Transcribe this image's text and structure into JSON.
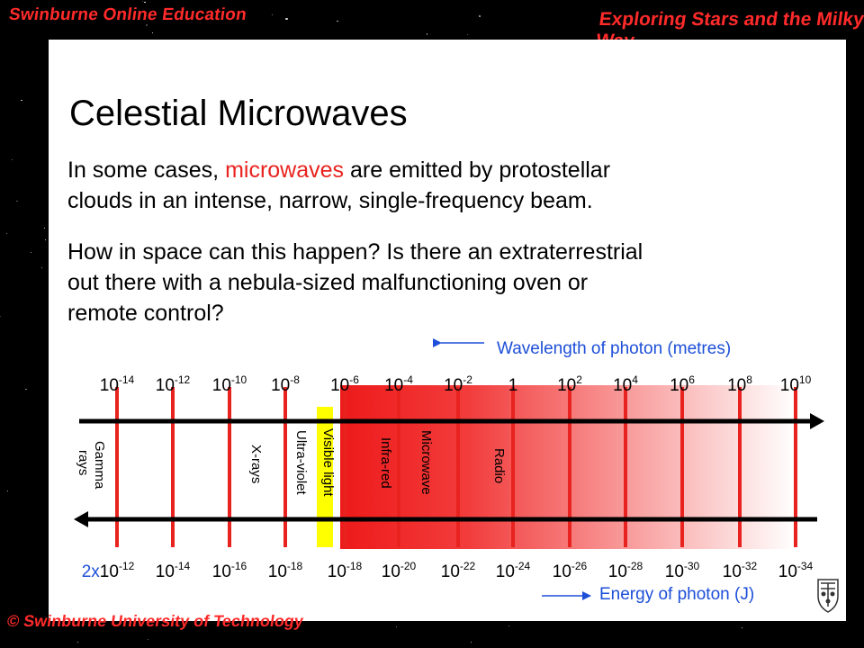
{
  "header": {
    "left": "Swinburne Online Education",
    "right": "Exploring Stars and the Milky Way"
  },
  "footer": {
    "text": "© Swinburne University of Technology"
  },
  "title": "Celestial Microwaves",
  "paragraph1": {
    "before": "In some cases, ",
    "highlight": "microwaves",
    "after_line1": " are emitted by protostellar",
    "line2": "clouds in an intense, narrow, single-frequency beam."
  },
  "paragraph2": {
    "line1": "How in space can this happen? Is there an extraterrestrial",
    "line2": "out there with a nebula-sized malfunctioning oven or",
    "line3": "remote control?"
  },
  "spectrum": {
    "wavelength_caption": "Wavelength of photon (metres)",
    "energy_caption": "Energy of photon (J)",
    "wavelength_ticks": [
      {
        "base": "10",
        "exp": "-14"
      },
      {
        "base": "10",
        "exp": "-12"
      },
      {
        "base": "10",
        "exp": "-10"
      },
      {
        "base": "10",
        "exp": "-8"
      },
      {
        "base": "10",
        "exp": "-6"
      },
      {
        "base": "10",
        "exp": "-4"
      },
      {
        "base": "10",
        "exp": "-2"
      },
      {
        "base": "1",
        "exp": ""
      },
      {
        "base": "10",
        "exp": "2"
      },
      {
        "base": "10",
        "exp": "4"
      },
      {
        "base": "10",
        "exp": "6"
      },
      {
        "base": "10",
        "exp": "8"
      },
      {
        "base": "10",
        "exp": "10"
      }
    ],
    "energy_ticks": [
      {
        "base": "2x10",
        "exp": "-12"
      },
      {
        "base": "10",
        "exp": "-14"
      },
      {
        "base": "10",
        "exp": "-16"
      },
      {
        "base": "10",
        "exp": "-18"
      },
      {
        "base": "10",
        "exp": "-18"
      },
      {
        "base": "10",
        "exp": "-20"
      },
      {
        "base": "10",
        "exp": "-22"
      },
      {
        "base": "10",
        "exp": "-24"
      },
      {
        "base": "10",
        "exp": "-26"
      },
      {
        "base": "10",
        "exp": "-28"
      },
      {
        "base": "10",
        "exp": "-30"
      },
      {
        "base": "10",
        "exp": "-32"
      },
      {
        "base": "10",
        "exp": "-34"
      }
    ],
    "bands": [
      {
        "line1": "Gamma",
        "line2": "rays"
      },
      {
        "line1": "X-rays",
        "line2": ""
      },
      {
        "line1": "Ultra-violet",
        "line2": ""
      },
      {
        "line1": "Visible light",
        "line2": ""
      },
      {
        "line1": "Infra-red",
        "line2": ""
      },
      {
        "line1": "Microwave",
        "line2": ""
      },
      {
        "line1": "Radio",
        "line2": ""
      }
    ],
    "colors": {
      "marker": "#e8231f",
      "visible": "#ffff00",
      "blue": "#1d4fd8"
    }
  }
}
